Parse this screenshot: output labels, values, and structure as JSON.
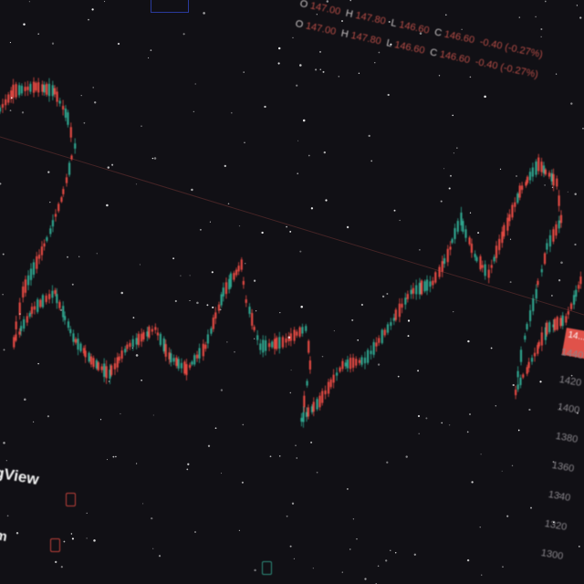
{
  "ohlc": {
    "line1": [
      {
        "k": "O",
        "v": "147.00"
      },
      {
        "k": "H",
        "v": "147.80"
      },
      {
        "k": "L",
        "v": "146.60"
      },
      {
        "k": "C",
        "v": "146.60"
      },
      {
        "k": "",
        "v": "-0.40 (-0.27%)"
      }
    ],
    "line2": [
      {
        "k": "O",
        "v": "147.00"
      },
      {
        "k": "H",
        "v": "147.80"
      },
      {
        "k": "L",
        "v": "146.60"
      },
      {
        "k": "C",
        "v": "146.60"
      },
      {
        "k": "",
        "v": "-0.40 (-0.27%)"
      }
    ]
  },
  "brand_text": "gView",
  "brand_text_2": "m",
  "price_tag": "14...",
  "price_axis": [
    "1440",
    "1420",
    "1400",
    "1380",
    "1360",
    "1340",
    "1320",
    "1300"
  ],
  "colors": {
    "background": "#111015",
    "bull": "#2fa38c",
    "bear": "#e24a43",
    "text": "#8a878c"
  }
}
